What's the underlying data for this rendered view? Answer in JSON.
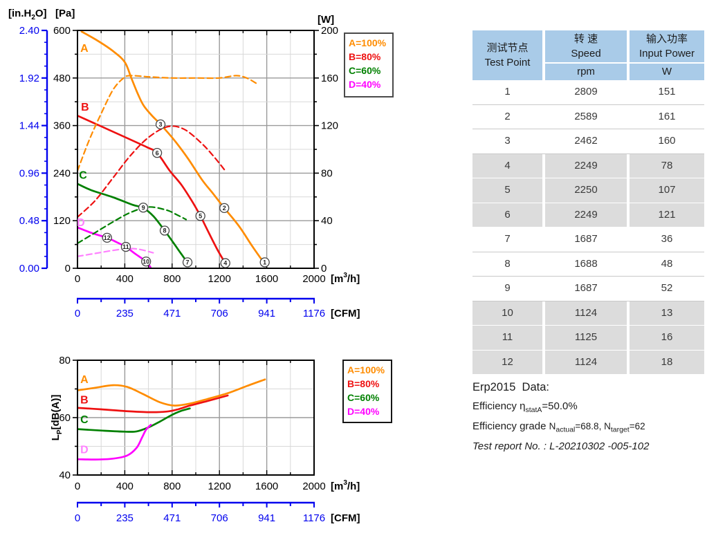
{
  "colors": {
    "blue_axis": "#0000ee",
    "grid_minor": "#d8d8d8",
    "grid_major": "#9a9a9a",
    "orange": "#ff8c00",
    "red": "#ee1111",
    "green": "#008000",
    "magenta": "#ff00ff",
    "pink_dashed": "#ff80ff",
    "table_header_bg": "#a9cbe8",
    "table_shaded_row": "#dcdcdc"
  },
  "legend": {
    "entries": [
      {
        "id": "A",
        "label": "A=100%",
        "color": "#ff8c00"
      },
      {
        "id": "B",
        "label": "B=80%",
        "color": "#ee1111"
      },
      {
        "id": "C",
        "label": "C=60%",
        "color": "#008000"
      },
      {
        "id": "D",
        "label": "D=40%",
        "color": "#ff00ff"
      }
    ]
  },
  "table": {
    "header": {
      "col1_zh": "测试节点",
      "col1_en": "Test Point",
      "col2_zh": "转 速",
      "col2_en": "Speed",
      "col2_unit": "rpm",
      "col3_zh": "输入功率",
      "col3_en": "Input Power",
      "col3_unit": "W"
    },
    "rows": [
      {
        "point": "1",
        "speed": "2809",
        "power": "151",
        "shaded": false
      },
      {
        "point": "2",
        "speed": "2589",
        "power": "161",
        "shaded": false
      },
      {
        "point": "3",
        "speed": "2462",
        "power": "160",
        "shaded": false
      },
      {
        "point": "4",
        "speed": "2249",
        "power": "78",
        "shaded": true
      },
      {
        "point": "5",
        "speed": "2250",
        "power": "107",
        "shaded": true
      },
      {
        "point": "6",
        "speed": "2249",
        "power": "121",
        "shaded": true
      },
      {
        "point": "7",
        "speed": "1687",
        "power": "36",
        "shaded": false
      },
      {
        "point": "8",
        "speed": "1688",
        "power": "48",
        "shaded": false
      },
      {
        "point": "9",
        "speed": "1687",
        "power": "52",
        "shaded": false
      },
      {
        "point": "10",
        "speed": "1124",
        "power": "13",
        "shaded": true
      },
      {
        "point": "11",
        "speed": "1125",
        "power": "16",
        "shaded": true
      },
      {
        "point": "12",
        "speed": "1124",
        "power": "18",
        "shaded": true
      }
    ]
  },
  "erp": {
    "title": "Erp2015  Data:",
    "line2_pre": "Efficiency η",
    "line2_sub": "statA",
    "line2_post": "=50.0%",
    "line3_pre": "Efficiency grade ",
    "line3_n1": "N",
    "line3_sub1": "actual",
    "line3_mid": "=68.8, N",
    "line3_sub2": "target",
    "line3_post": "=62",
    "line4": "Test report No. : L-20210302 -005-102"
  },
  "chart_data": [
    {
      "type": "line",
      "title": "Static pressure and input power vs airflow",
      "x_axis": {
        "label_pre": "[m",
        "label_sup": "3",
        "label_post": "/h]",
        "min": 0,
        "max": 2000,
        "major_ticks": [
          0,
          400,
          800,
          1200,
          1600,
          2000
        ],
        "minor_step": 200
      },
      "x2_axis": {
        "label": "[CFM]",
        "ticks": [
          "0",
          "235",
          "471",
          "706",
          "941",
          "1176"
        ]
      },
      "y_left_axis": {
        "label": "[Pa]",
        "min": 0,
        "max": 600,
        "major_ticks": [
          0,
          120,
          240,
          360,
          480,
          600
        ],
        "minor_step": 60
      },
      "y_far_left_axis": {
        "label_pre": "[in.H",
        "label_sub": "2",
        "label_post": "O]",
        "min": 0,
        "max": 2.4,
        "major_tick_labels": [
          "0.00",
          "0.48",
          "0.96",
          "1.44",
          "1.92",
          "2.40"
        ],
        "minor_divisions": 4
      },
      "y_right_axis": {
        "label": "[W]",
        "min": 0,
        "max": 200,
        "major_ticks": [
          0,
          40,
          80,
          120,
          160,
          200
        ],
        "minor_step": 20
      },
      "grid": true,
      "series": [
        {
          "id": "A-pressure",
          "name": "A=100% static pressure [Pa]",
          "axis": "left",
          "style": "solid",
          "color": "#ff8c00",
          "label": {
            "text": "A",
            "x": 58,
            "y": 555
          },
          "points": [
            [
              35,
              597
            ],
            [
              160,
              576
            ],
            [
              300,
              548
            ],
            [
              400,
              520
            ],
            [
              455,
              480
            ],
            [
              510,
              440
            ],
            [
              560,
              410
            ],
            [
              630,
              385
            ],
            [
              702,
              363
            ],
            [
              819,
              323
            ],
            [
              936,
              276
            ],
            [
              1053,
              223
            ],
            [
              1150,
              187
            ],
            [
              1241,
              152
            ],
            [
              1364,
              107
            ],
            [
              1481,
              54
            ],
            [
              1590,
              8
            ]
          ]
        },
        {
          "id": "B-pressure",
          "name": "B=80% static pressure [Pa]",
          "axis": "left",
          "style": "solid",
          "color": "#ee1111",
          "label": {
            "text": "B",
            "x": 64,
            "y": 406
          },
          "points": [
            [
              0,
              385
            ],
            [
              200,
              358
            ],
            [
              400,
              331
            ],
            [
              590,
              305
            ],
            [
              673,
              291
            ],
            [
              780,
              246
            ],
            [
              877,
              211
            ],
            [
              975,
              166
            ],
            [
              1039,
              132
            ],
            [
              1111,
              89
            ],
            [
              1190,
              43
            ],
            [
              1250,
              13
            ]
          ]
        },
        {
          "id": "C-pressure",
          "name": "C=60% static pressure [Pa]",
          "axis": "left",
          "style": "solid",
          "color": "#008000",
          "label": {
            "text": "C",
            "x": 47,
            "y": 235
          },
          "points": [
            [
              0,
              213
            ],
            [
              117,
              197
            ],
            [
              292,
              180
            ],
            [
              468,
              160
            ],
            [
              556,
              152
            ],
            [
              643,
              131
            ],
            [
              737,
              95
            ],
            [
              819,
              61
            ],
            [
              880,
              35
            ],
            [
              940,
              10
            ]
          ]
        },
        {
          "id": "D-pressure",
          "name": "D=40% static pressure [Pa]",
          "axis": "left",
          "style": "solid",
          "color": "#ff00ff",
          "label": {
            "text": "D",
            "x": 29,
            "y": 115
          },
          "label_color": "#ff80ff",
          "points": [
            [
              0,
              103
            ],
            [
              130,
              88
            ],
            [
              250,
              77
            ],
            [
              330,
              66
            ],
            [
              409,
              54
            ],
            [
              486,
              37
            ],
            [
              580,
              17
            ],
            [
              618,
              2
            ]
          ]
        },
        {
          "id": "A-power",
          "name": "A=100% input power [W]",
          "axis": "right",
          "style": "dashed",
          "color": "#ff8c00",
          "points": [
            [
              0,
              82
            ],
            [
              100,
              108
            ],
            [
              200,
              130
            ],
            [
              300,
              150
            ],
            [
              390,
              160
            ],
            [
              450,
              162
            ],
            [
              600,
              161
            ],
            [
              800,
              160
            ],
            [
              1000,
              160
            ],
            [
              1200,
              160
            ],
            [
              1340,
              162
            ],
            [
              1430,
              160
            ],
            [
              1520,
              155
            ]
          ]
        },
        {
          "id": "B-power",
          "name": "B=80% input power [W]",
          "axis": "right",
          "style": "dashed",
          "color": "#ee1111",
          "points": [
            [
              0,
              43
            ],
            [
              150,
              57
            ],
            [
              300,
              76
            ],
            [
              450,
              95
            ],
            [
              600,
              110
            ],
            [
              760,
              119
            ],
            [
              900,
              117
            ],
            [
              1050,
              105
            ],
            [
              1160,
              93
            ],
            [
              1257,
              81
            ]
          ]
        },
        {
          "id": "C-power",
          "name": "C=60% input power [W]",
          "axis": "right",
          "style": "dashed",
          "color": "#008000",
          "points": [
            [
              0,
              21
            ],
            [
              150,
              30
            ],
            [
              300,
              39
            ],
            [
              450,
              47
            ],
            [
              600,
              51.5
            ],
            [
              750,
              49
            ],
            [
              840,
              45
            ],
            [
              918,
              41
            ]
          ]
        },
        {
          "id": "D-power",
          "name": "D=40% input power [W]",
          "axis": "right",
          "style": "dashed",
          "color": "#ff80ff",
          "points": [
            [
              0,
              10
            ],
            [
              150,
              12.5
            ],
            [
              300,
              15
            ],
            [
              420,
              16.5
            ],
            [
              520,
              16
            ],
            [
              640,
              13
            ]
          ]
        }
      ],
      "test_point_markers": [
        {
          "n": "1",
          "x": 1583,
          "y": 15
        },
        {
          "n": "2",
          "x": 1241,
          "y": 152
        },
        {
          "n": "3",
          "x": 702,
          "y": 363
        },
        {
          "n": "4",
          "x": 1250,
          "y": 13
        },
        {
          "n": "5",
          "x": 1039,
          "y": 132
        },
        {
          "n": "6",
          "x": 673,
          "y": 291
        },
        {
          "n": "7",
          "x": 930,
          "y": 15
        },
        {
          "n": "8",
          "x": 737,
          "y": 95
        },
        {
          "n": "9",
          "x": 556,
          "y": 153
        },
        {
          "n": "10",
          "x": 580,
          "y": 17
        },
        {
          "n": "11",
          "x": 409,
          "y": 54
        },
        {
          "n": "12",
          "x": 250,
          "y": 77
        }
      ]
    },
    {
      "type": "line",
      "title": "Sound pressure level vs airflow",
      "x_axis": {
        "label_pre": "[m",
        "label_sup": "3",
        "label_post": "/h]",
        "min": 0,
        "max": 2000,
        "major_ticks": [
          0,
          400,
          800,
          1200,
          1600,
          2000
        ],
        "minor_step": 200
      },
      "x2_axis": {
        "label": "[CFM]",
        "ticks": [
          "0",
          "235",
          "471",
          "706",
          "941",
          "1176"
        ]
      },
      "y_left_axis": {
        "label_pre": "L",
        "label_sub": "P",
        "label_post": "[dB(A)]",
        "min": 40,
        "max": 80,
        "major_ticks": [
          40,
          60,
          80
        ],
        "minor_step": 10
      },
      "grid": true,
      "series": [
        {
          "id": "A-noise",
          "name": "A=100% noise [dB(A)]",
          "axis": "left",
          "style": "solid",
          "color": "#ff8c00",
          "label": {
            "text": "A",
            "x": 58,
            "y": 73.2
          },
          "points": [
            [
              0,
              69.5
            ],
            [
              150,
              70.4
            ],
            [
              300,
              71.3
            ],
            [
              420,
              70.7
            ],
            [
              550,
              68.3
            ],
            [
              700,
              65.3
            ],
            [
              820,
              64.2
            ],
            [
              950,
              64.9
            ],
            [
              1100,
              66.5
            ],
            [
              1270,
              68.5
            ],
            [
              1430,
              71
            ],
            [
              1585,
              73.3
            ]
          ]
        },
        {
          "id": "B-noise",
          "name": "B=80% noise [dB(A)]",
          "axis": "left",
          "style": "solid",
          "color": "#ee1111",
          "label": {
            "text": "B",
            "x": 58,
            "y": 66.1
          },
          "points": [
            [
              0,
              63.4
            ],
            [
              200,
              62.9
            ],
            [
              400,
              62.3
            ],
            [
              600,
              61.9
            ],
            [
              750,
              62.1
            ],
            [
              850,
              62.9
            ],
            [
              950,
              64.2
            ],
            [
              1100,
              65.8
            ],
            [
              1270,
              67.7
            ]
          ]
        },
        {
          "id": "C-noise",
          "name": "C=60% noise [dB(A)]",
          "axis": "left",
          "style": "solid",
          "color": "#008000",
          "label": {
            "text": "C",
            "x": 58,
            "y": 59.3
          },
          "points": [
            [
              0,
              56
            ],
            [
              200,
              55.5
            ],
            [
              400,
              55.1
            ],
            [
              500,
              55.2
            ],
            [
              600,
              56.6
            ],
            [
              700,
              58.7
            ],
            [
              800,
              61
            ],
            [
              880,
              62.4
            ],
            [
              950,
              63.2
            ]
          ]
        },
        {
          "id": "D-noise",
          "name": "D=40% noise [dB(A)]",
          "axis": "left",
          "style": "solid",
          "color": "#ff00ff",
          "label": {
            "text": "D",
            "x": 58,
            "y": 48.8
          },
          "label_color": "#ff80ff",
          "points": [
            [
              0,
              45.5
            ],
            [
              150,
              45.4
            ],
            [
              300,
              45.7
            ],
            [
              420,
              46.8
            ],
            [
              500,
              49.5
            ],
            [
              545,
              53
            ],
            [
              580,
              55.8
            ],
            [
              620,
              57.5
            ]
          ]
        }
      ]
    }
  ]
}
